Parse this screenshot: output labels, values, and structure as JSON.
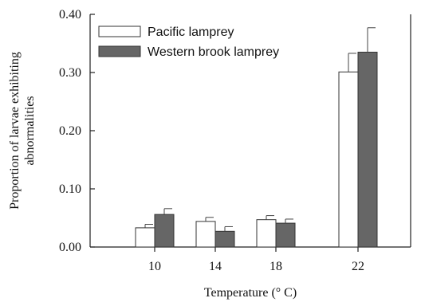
{
  "chart_data": {
    "type": "bar",
    "title": "",
    "xlabel": "Temperature (° C)",
    "ylabel": [
      "Proportion of larvae exhibiting",
      "abnormalities"
    ],
    "categories": [
      "10",
      "14",
      "18",
      "22"
    ],
    "ylim": [
      0,
      0.4
    ],
    "yticks": [
      "0.00",
      "0.10",
      "0.20",
      "0.30",
      "0.40"
    ],
    "yticks_values": [
      0,
      0.1,
      0.2,
      0.3,
      0.4
    ],
    "grid": false,
    "legend_position": "top-left",
    "series": [
      {
        "name": "Pacific lamprey",
        "values": [
          0.033,
          0.044,
          0.047,
          0.301
        ],
        "errors": [
          0.006,
          0.007,
          0.007,
          0.032
        ],
        "fill": "#ffffff",
        "stroke": "#333333"
      },
      {
        "name": "Western brook lamprey",
        "values": [
          0.056,
          0.027,
          0.041,
          0.335
        ],
        "errors": [
          0.01,
          0.008,
          0.007,
          0.042
        ],
        "fill": "#666666",
        "stroke": "#333333"
      }
    ]
  }
}
